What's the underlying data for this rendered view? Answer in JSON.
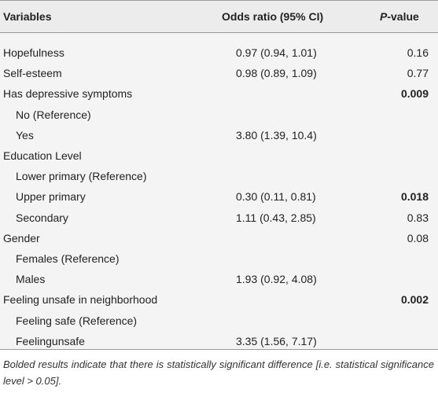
{
  "header": {
    "variables": "Variables",
    "odds_ratio": "Odds ratio (95% CI)",
    "p_prefix": "P",
    "p_suffix": "-value"
  },
  "rows": [
    {
      "variable": "Hopefulness",
      "odds_ratio": "0.97 (0.94, 1.01)",
      "p_value": "0.16",
      "indent": false,
      "bold": false
    },
    {
      "variable": "Self-esteem",
      "odds_ratio": "0.98 (0.89, 1.09)",
      "p_value": "0.77",
      "indent": false,
      "bold": false
    },
    {
      "variable": "Has depressive symptoms",
      "odds_ratio": "",
      "p_value": "0.009",
      "indent": false,
      "bold": true
    },
    {
      "variable": "No (Reference)",
      "odds_ratio": "",
      "p_value": "",
      "indent": true,
      "bold": false
    },
    {
      "variable": "Yes",
      "odds_ratio": "3.80 (1.39, 10.4)",
      "p_value": "",
      "indent": true,
      "bold": false
    },
    {
      "variable": "Education Level",
      "odds_ratio": "",
      "p_value": "",
      "indent": false,
      "bold": false
    },
    {
      "variable": "Lower primary (Reference)",
      "odds_ratio": "",
      "p_value": "",
      "indent": true,
      "bold": false
    },
    {
      "variable": "Upper primary",
      "odds_ratio": "0.30 (0.11, 0.81)",
      "p_value": "0.018",
      "indent": true,
      "bold": true
    },
    {
      "variable": "Secondary",
      "odds_ratio": "1.11 (0.43, 2.85)",
      "p_value": "0.83",
      "indent": true,
      "bold": false
    },
    {
      "variable": "Gender",
      "odds_ratio": "",
      "p_value": "0.08",
      "indent": false,
      "bold": false
    },
    {
      "variable": "Females (Reference)",
      "odds_ratio": "",
      "p_value": "",
      "indent": true,
      "bold": false
    },
    {
      "variable": "Males",
      "odds_ratio": "1.93 (0.92, 4.08)",
      "p_value": "",
      "indent": true,
      "bold": false
    },
    {
      "variable": "Feeling unsafe in neighborhood",
      "odds_ratio": "",
      "p_value": "0.002",
      "indent": false,
      "bold": true
    },
    {
      "variable": "Feeling safe (Reference)",
      "odds_ratio": "",
      "p_value": "",
      "indent": true,
      "bold": false
    },
    {
      "variable": "Feelingunsafe",
      "odds_ratio": "3.35 (1.56, 7.17)",
      "p_value": "",
      "indent": true,
      "bold": false
    }
  ],
  "footnote": "Bolded results indicate that there is statistically significant difference [i.e. statistical significance level > 0.05]."
}
